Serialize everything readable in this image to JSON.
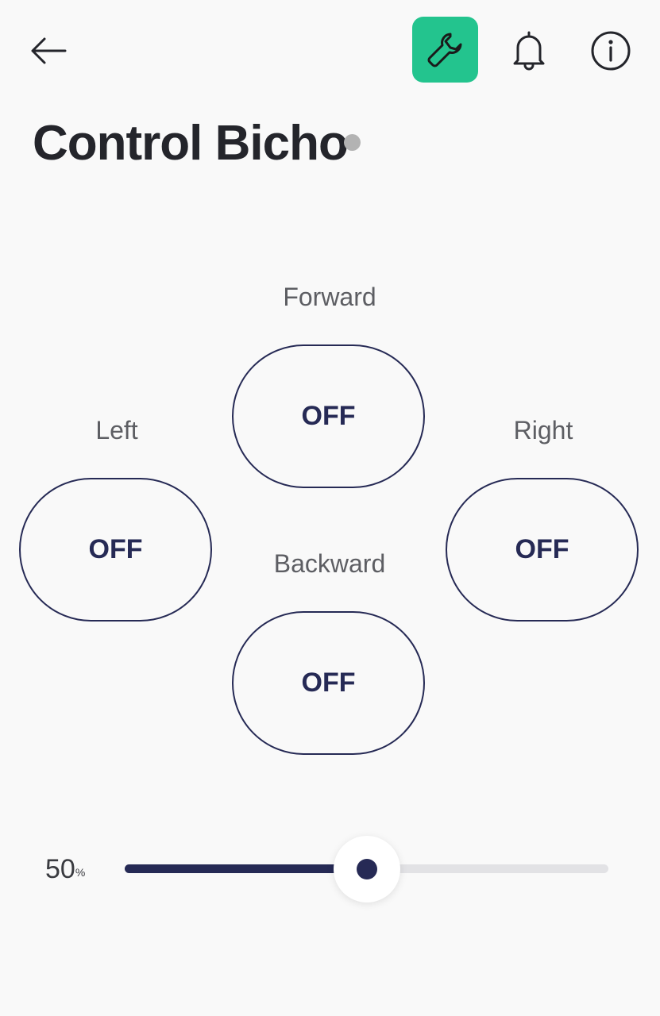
{
  "header": {
    "back_icon": "arrow-left-icon",
    "tools_icon": "wrench-icon",
    "bell_icon": "bell-icon",
    "info_icon": "info-icon",
    "accent_color": "#23c48e"
  },
  "title": "Control Bicho",
  "status_dot_color": "#b3b3b3",
  "pads": {
    "forward": {
      "label": "Forward",
      "state": "OFF"
    },
    "left": {
      "label": "Left",
      "state": "OFF"
    },
    "right": {
      "label": "Right",
      "state": "OFF"
    },
    "backward": {
      "label": "Backward",
      "state": "OFF"
    }
  },
  "slider": {
    "value": "50",
    "unit": "%",
    "fraction": 0.5,
    "fill_color": "#262a55"
  }
}
